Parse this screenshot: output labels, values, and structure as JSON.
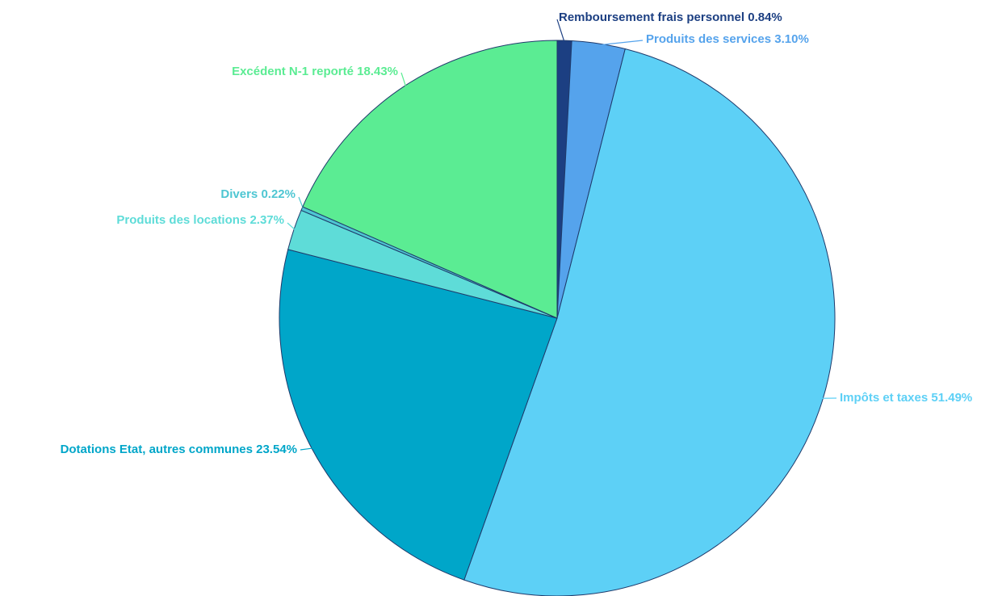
{
  "chart_data": {
    "type": "pie",
    "categories": [
      "Remboursement frais personnel",
      "Produits des services ",
      "Impôts et taxes",
      "Dotations Etat, autres communes",
      "Produits des locations",
      "Divers",
      "Excédent N-1 reporté"
    ],
    "values": [
      0.84,
      3.1,
      51.49,
      23.54,
      2.37,
      0.22,
      18.43
    ],
    "value_labels": [
      "0.84%",
      "3.10%",
      "51.49%",
      "23.54%",
      "2.37%",
      "0.22%",
      "18.43%"
    ],
    "colors": [
      "#1c3f82",
      "#55a3ec",
      "#5dd0f6",
      "#00a6c9",
      "#5edcd8",
      "#4ec6d2",
      "#5bec93"
    ]
  }
}
